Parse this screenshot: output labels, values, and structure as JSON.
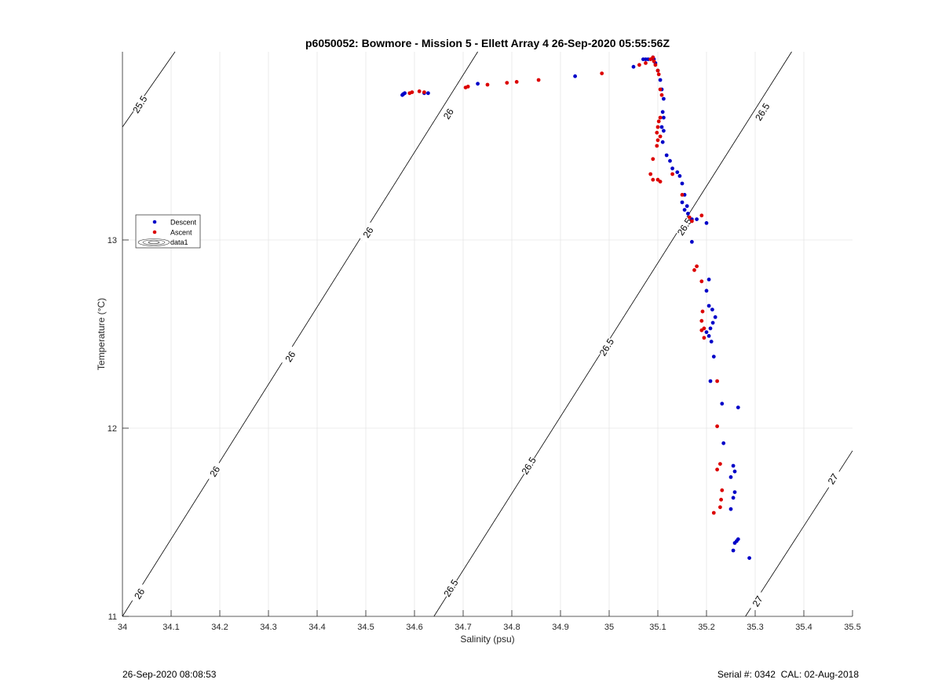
{
  "footer": {
    "timestamp": "26-Sep-2020 08:08:53",
    "serial": "Serial #: 0342  CAL: 02-Aug-2018"
  },
  "chart_data": {
    "type": "scatter",
    "title": "p6050052: Bowmore - Mission 5 - Ellett Array 4 26-Sep-2020 05:55:56Z",
    "xlabel": "Salinity (psu)",
    "ylabel": "Temperature (°C)",
    "xlim": [
      34,
      35.5
    ],
    "ylim": [
      11,
      14
    ],
    "xticks": [
      34,
      34.1,
      34.2,
      34.3,
      34.4,
      34.5,
      34.6,
      34.7,
      34.8,
      34.9,
      35,
      35.1,
      35.2,
      35.3,
      35.4,
      35.5
    ],
    "xtick_labels": [
      "34",
      "34.1",
      "34.2",
      "34.3",
      "34.4",
      "34.5",
      "34.6",
      "34.7",
      "34.8",
      "34.9",
      "35",
      "35.1",
      "35.2",
      "35.3",
      "35.4",
      "35.5"
    ],
    "yticks": [
      11,
      12,
      13
    ],
    "ytick_labels": [
      "11",
      "12",
      "13"
    ],
    "grid": true,
    "legend": {
      "placement": "left",
      "entries": [
        {
          "label": "Descent",
          "color": "#0000c8",
          "marker": "dot"
        },
        {
          "label": "Ascent",
          "color": "#dc0000",
          "marker": "dot"
        },
        {
          "label": "data1",
          "color": "#000000",
          "marker": "contour"
        }
      ]
    },
    "isopycnals": [
      {
        "sigma": 25.5,
        "points": [
          [
            34.0,
            13.6
          ],
          [
            34.108,
            14.0
          ]
        ]
      },
      {
        "sigma": 26.0,
        "points": [
          [
            34.0,
            11.0
          ],
          [
            34.73,
            14.0
          ]
        ]
      },
      {
        "sigma": 26.5,
        "points": [
          [
            34.64,
            11.0
          ],
          [
            35.375,
            14.0
          ]
        ]
      },
      {
        "sigma": 27.0,
        "points": [
          [
            35.28,
            11.0
          ],
          [
            35.5,
            11.88
          ]
        ]
      }
    ],
    "isopycnal_labels": [
      {
        "text": "25.5",
        "x": 34.036,
        "y": 13.72
      },
      {
        "text": "26",
        "x": 34.67,
        "y": 13.67
      },
      {
        "text": "26",
        "x": 34.505,
        "y": 13.04
      },
      {
        "text": "26",
        "x": 34.345,
        "y": 12.38
      },
      {
        "text": "26",
        "x": 34.19,
        "y": 11.77
      },
      {
        "text": "26",
        "x": 34.035,
        "y": 11.12
      },
      {
        "text": "26.5",
        "x": 35.315,
        "y": 13.68
      },
      {
        "text": "26.5",
        "x": 35.155,
        "y": 13.07
      },
      {
        "text": "26.5",
        "x": 34.995,
        "y": 12.43
      },
      {
        "text": "26.5",
        "x": 34.835,
        "y": 11.8
      },
      {
        "text": "26.5",
        "x": 34.675,
        "y": 11.15
      },
      {
        "text": "27",
        "x": 35.46,
        "y": 11.73
      },
      {
        "text": "27",
        "x": 35.305,
        "y": 11.08
      }
    ],
    "series": [
      {
        "name": "Descent",
        "color": "#0000c8",
        "points": [
          [
            34.575,
            13.77
          ],
          [
            34.577,
            13.775
          ],
          [
            34.58,
            13.78
          ],
          [
            34.62,
            13.78
          ],
          [
            34.628,
            13.78
          ],
          [
            34.73,
            13.83
          ],
          [
            34.93,
            13.87
          ],
          [
            35.05,
            13.92
          ],
          [
            35.07,
            13.96
          ],
          [
            35.075,
            13.96
          ],
          [
            35.08,
            13.96
          ],
          [
            35.09,
            13.97
          ],
          [
            35.092,
            13.96
          ],
          [
            35.095,
            13.94
          ],
          [
            35.1,
            13.9
          ],
          [
            35.105,
            13.85
          ],
          [
            35.108,
            13.8
          ],
          [
            35.112,
            13.75
          ],
          [
            35.11,
            13.68
          ],
          [
            35.112,
            13.65
          ],
          [
            35.108,
            13.6
          ],
          [
            35.112,
            13.58
          ],
          [
            35.11,
            13.52
          ],
          [
            35.118,
            13.45
          ],
          [
            35.125,
            13.42
          ],
          [
            35.13,
            13.38
          ],
          [
            35.14,
            13.36
          ],
          [
            35.145,
            13.34
          ],
          [
            35.15,
            13.3
          ],
          [
            35.155,
            13.24
          ],
          [
            35.15,
            13.2
          ],
          [
            35.16,
            13.18
          ],
          [
            35.155,
            13.16
          ],
          [
            35.162,
            13.14
          ],
          [
            35.17,
            13.11
          ],
          [
            35.18,
            13.11
          ],
          [
            35.2,
            13.09
          ],
          [
            35.17,
            12.99
          ],
          [
            35.205,
            12.79
          ],
          [
            35.2,
            12.73
          ],
          [
            35.205,
            12.65
          ],
          [
            35.212,
            12.63
          ],
          [
            35.218,
            12.59
          ],
          [
            35.213,
            12.56
          ],
          [
            35.208,
            12.53
          ],
          [
            35.2,
            12.51
          ],
          [
            35.205,
            12.49
          ],
          [
            35.21,
            12.46
          ],
          [
            35.215,
            12.38
          ],
          [
            35.208,
            12.25
          ],
          [
            35.232,
            12.13
          ],
          [
            35.265,
            12.11
          ],
          [
            35.235,
            11.92
          ],
          [
            35.255,
            11.8
          ],
          [
            35.258,
            11.77
          ],
          [
            35.25,
            11.74
          ],
          [
            35.258,
            11.66
          ],
          [
            35.255,
            11.63
          ],
          [
            35.25,
            11.57
          ],
          [
            35.265,
            11.41
          ],
          [
            35.262,
            11.4
          ],
          [
            35.258,
            11.39
          ],
          [
            35.255,
            11.35
          ],
          [
            35.288,
            11.31
          ]
        ]
      },
      {
        "name": "Ascent",
        "color": "#dc0000",
        "points": [
          [
            34.59,
            13.78
          ],
          [
            34.595,
            13.785
          ],
          [
            34.61,
            13.79
          ],
          [
            34.62,
            13.785
          ],
          [
            34.705,
            13.81
          ],
          [
            34.71,
            13.815
          ],
          [
            34.75,
            13.825
          ],
          [
            34.79,
            13.835
          ],
          [
            34.81,
            13.84
          ],
          [
            34.855,
            13.85
          ],
          [
            34.985,
            13.885
          ],
          [
            35.062,
            13.93
          ],
          [
            35.075,
            13.94
          ],
          [
            35.085,
            13.96
          ],
          [
            35.09,
            13.97
          ],
          [
            35.092,
            13.95
          ],
          [
            35.095,
            13.93
          ],
          [
            35.1,
            13.9
          ],
          [
            35.102,
            13.88
          ],
          [
            35.105,
            13.8
          ],
          [
            35.108,
            13.77
          ],
          [
            35.105,
            13.65
          ],
          [
            35.102,
            13.63
          ],
          [
            35.1,
            13.6
          ],
          [
            35.098,
            13.57
          ],
          [
            35.105,
            13.55
          ],
          [
            35.1,
            13.53
          ],
          [
            35.098,
            13.5
          ],
          [
            35.09,
            13.43
          ],
          [
            35.085,
            13.35
          ],
          [
            35.09,
            13.32
          ],
          [
            35.1,
            13.32
          ],
          [
            35.105,
            13.31
          ],
          [
            35.13,
            13.35
          ],
          [
            35.15,
            13.24
          ],
          [
            35.165,
            13.12
          ],
          [
            35.17,
            13.1
          ],
          [
            35.19,
            13.13
          ],
          [
            35.18,
            12.86
          ],
          [
            35.175,
            12.84
          ],
          [
            35.19,
            12.78
          ],
          [
            35.192,
            12.62
          ],
          [
            35.19,
            12.57
          ],
          [
            35.195,
            12.53
          ],
          [
            35.19,
            12.52
          ],
          [
            35.195,
            12.48
          ],
          [
            35.222,
            12.25
          ],
          [
            35.222,
            12.01
          ],
          [
            35.228,
            11.81
          ],
          [
            35.222,
            11.78
          ],
          [
            35.232,
            11.67
          ],
          [
            35.23,
            11.62
          ],
          [
            35.228,
            11.58
          ],
          [
            35.215,
            11.55
          ]
        ]
      }
    ]
  }
}
